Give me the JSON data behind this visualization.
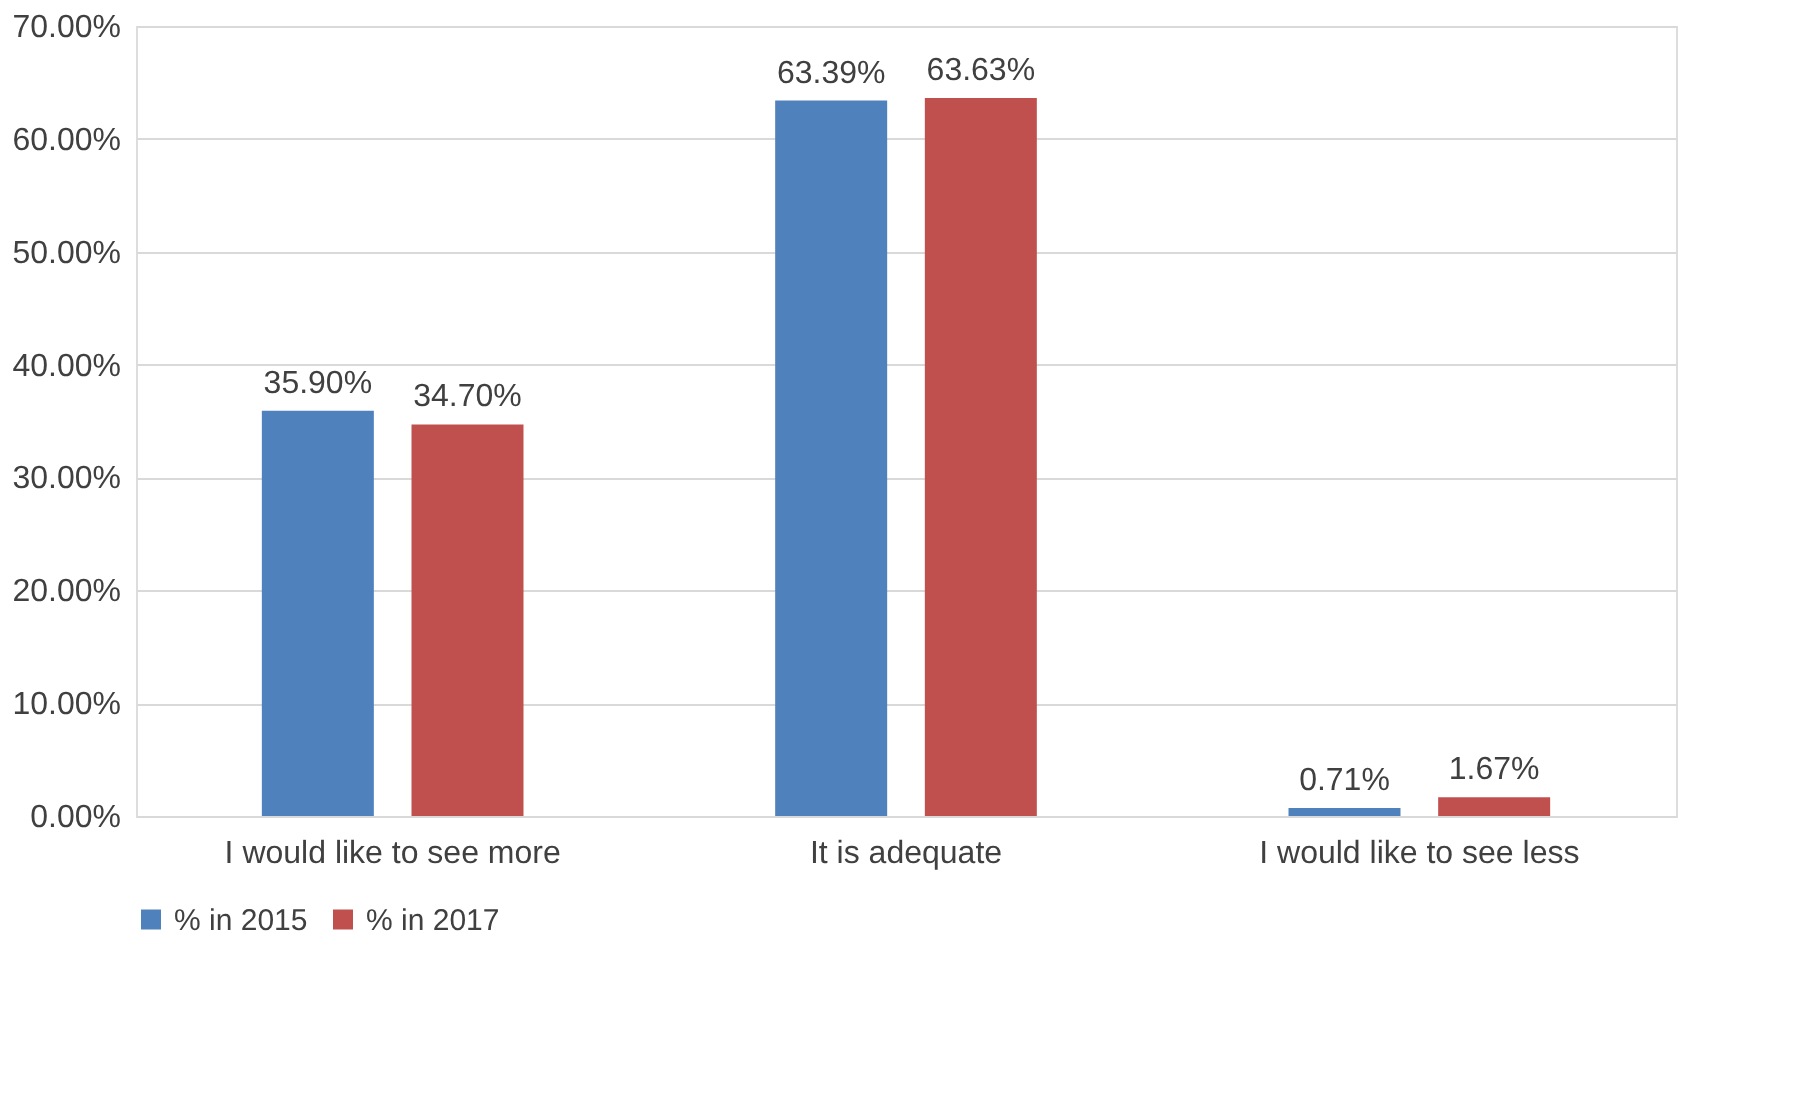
{
  "chart_data": {
    "type": "bar",
    "categories": [
      "I would like to see more",
      "It is adequate",
      "I would like to see less"
    ],
    "series": [
      {
        "name": "% in 2015",
        "color": "#4f81bd",
        "values": [
          35.9,
          63.39,
          0.71
        ],
        "value_labels": [
          "35.90%",
          "63.39%",
          "0.71%"
        ]
      },
      {
        "name": "% in 2017",
        "color": "#c0504d",
        "values": [
          34.7,
          63.63,
          1.67
        ],
        "value_labels": [
          "34.70%",
          "63.63%",
          "1.67%"
        ]
      }
    ],
    "ylim": [
      0,
      70
    ],
    "yticks": [
      {
        "value": 0,
        "label": "0.00%"
      },
      {
        "value": 10,
        "label": "10.00%"
      },
      {
        "value": 20,
        "label": "20.00%"
      },
      {
        "value": 30,
        "label": "30.00%"
      },
      {
        "value": 40,
        "label": "40.00%"
      },
      {
        "value": 50,
        "label": "50.00%"
      },
      {
        "value": 60,
        "label": "60.00%"
      },
      {
        "value": 70,
        "label": "70.00%"
      }
    ],
    "grid": "y",
    "legend": "bottom"
  }
}
